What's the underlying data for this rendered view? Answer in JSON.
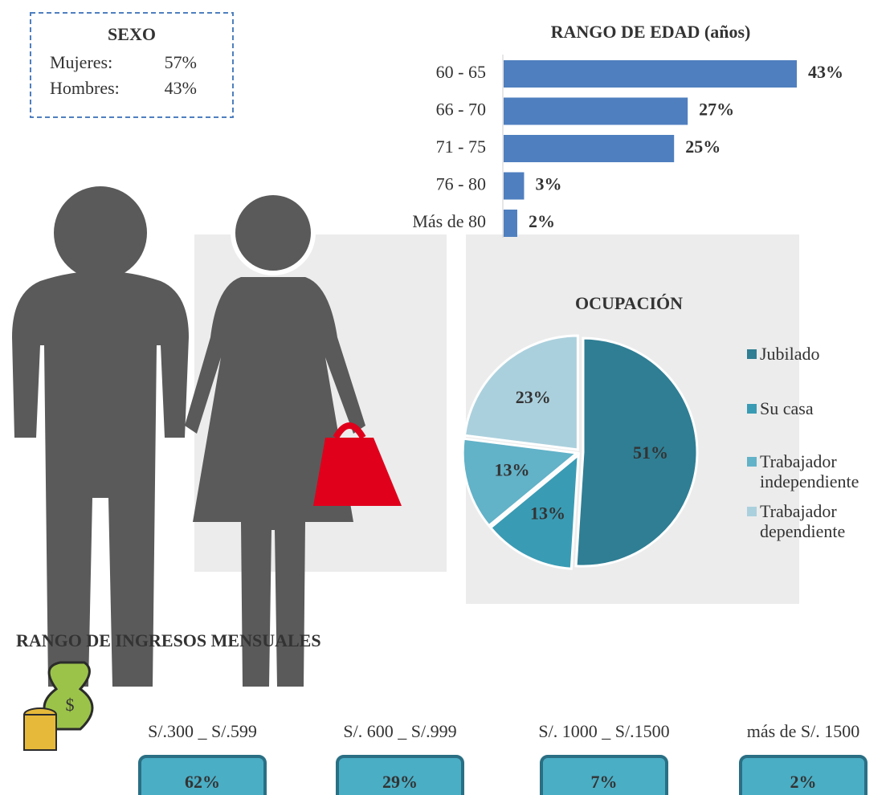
{
  "sexo": {
    "title": "SEXO",
    "rows": [
      {
        "label": "Mujeres:",
        "value": "57%"
      },
      {
        "label": "Hombres:",
        "value": "43%"
      }
    ]
  },
  "chart_data": [
    {
      "type": "bar",
      "title": "RANGO DE EDAD (años)",
      "orientation": "horizontal",
      "categories": [
        "60 - 65",
        "66 - 70",
        "71 - 75",
        "76 - 80",
        "Más de 80"
      ],
      "values": [
        43,
        27,
        25,
        3,
        2
      ],
      "value_labels": [
        "43%",
        "27%",
        "25%",
        "3%",
        "2%"
      ],
      "color": "#4f7fbf"
    },
    {
      "type": "pie",
      "title": "OCUPACIÓN",
      "categories": [
        "Jubilado",
        "Su casa",
        "Trabajador independiente",
        "Trabajador dependiente"
      ],
      "values": [
        51,
        13,
        13,
        23
      ],
      "value_labels": [
        "51%",
        "13%",
        "13%",
        "23%"
      ],
      "colors": [
        "#2f7e94",
        "#3a9bb4",
        "#62b2c8",
        "#abd0dd"
      ],
      "legend": "right"
    }
  ],
  "income": {
    "title": "RANGO DE INGRESOS MENSUALES",
    "categories": [
      "S/.300 _ S/.599",
      "S/. 600 _ S/.999",
      "S/. 1000 _ S/.1500",
      "más de S/. 1500"
    ],
    "values": [
      "62%",
      "29%",
      "7%",
      "2%"
    ]
  }
}
